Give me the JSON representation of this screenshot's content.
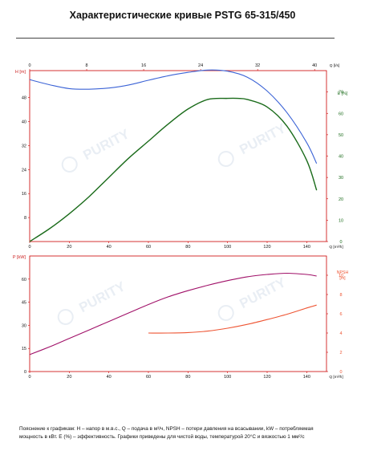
{
  "title": "Характеристические кривые PSTG 65-315/450",
  "footnote": {
    "line1": "Пояснение к графикам: H – напор в м.в.с., Q – подача в м³/ч, NPSH – потери давления на всасывании, kW – потребляемая",
    "line2": "мощность в кВт. E (%) – эффективность.  Графики приведены для чистой воды, температурой 20°C и вязкостью 1 мм²/с"
  },
  "watermark": "PURITY",
  "colors": {
    "frame": "#cc0000",
    "head": "#3b63d6",
    "efficiency": "#1a6b1a",
    "power": "#a01068",
    "npsh": "#ee5533",
    "axis_text": "#111111",
    "unit_text": "#cc2222"
  },
  "chart_data": [
    {
      "type": "line",
      "panel": "top",
      "x_unit": "Q [m³/h]",
      "top_axis_unit": "Q [l/s]",
      "top_axis_ticks": [
        "0",
        "8",
        "16",
        "24",
        "32",
        "40"
      ],
      "top_axis_values": [
        0,
        8,
        16,
        24,
        32,
        40
      ],
      "xlim": [
        0,
        150
      ],
      "x_ticks": [
        0,
        20,
        40,
        60,
        80,
        100,
        120,
        140
      ],
      "left_axis": {
        "label": "H [m]",
        "ticks": [
          8,
          16,
          24,
          32,
          40,
          48
        ],
        "lim": [
          0,
          57
        ]
      },
      "right_axis": {
        "label": "E [%]",
        "ticks": [
          0,
          10,
          20,
          30,
          40,
          50,
          60,
          70
        ],
        "lim": [
          0,
          80
        ]
      },
      "series": [
        {
          "key": "head",
          "axis": "left",
          "x": [
            0,
            10,
            20,
            30,
            40,
            50,
            60,
            70,
            80,
            90,
            100,
            110,
            120,
            130,
            140,
            145
          ],
          "y": [
            54,
            52.3,
            51,
            50.8,
            51.2,
            52.2,
            53.8,
            55.3,
            56.4,
            57.2,
            56.8,
            54.8,
            50.2,
            43,
            33,
            26
          ]
        },
        {
          "key": "efficiency",
          "axis": "right",
          "x": [
            0,
            10,
            20,
            30,
            40,
            50,
            60,
            70,
            80,
            90,
            100,
            105,
            110,
            120,
            130,
            140,
            145
          ],
          "y": [
            0,
            6,
            13,
            21,
            30,
            39,
            47,
            55,
            62,
            66.5,
            67,
            67,
            66.5,
            63,
            54,
            38,
            24
          ]
        }
      ]
    },
    {
      "type": "line",
      "panel": "bottom",
      "x_unit": "Q [m³/h]",
      "xlim": [
        0,
        150
      ],
      "x_ticks": [
        0,
        20,
        40,
        60,
        80,
        100,
        120,
        140
      ],
      "left_axis": {
        "label": "P [kW]",
        "ticks": [
          0,
          15,
          30,
          45,
          60
        ],
        "lim": [
          0,
          75
        ]
      },
      "right_axis": {
        "label": "NPSH",
        "unit": "[m]",
        "ticks": [
          0,
          2,
          4,
          6,
          8,
          10
        ],
        "lim": [
          0,
          12
        ]
      },
      "series": [
        {
          "key": "power",
          "axis": "left",
          "x": [
            0,
            10,
            20,
            30,
            40,
            50,
            60,
            70,
            80,
            90,
            100,
            110,
            120,
            130,
            140,
            145
          ],
          "y": [
            11,
            16,
            21.5,
            27,
            32.5,
            38,
            43.5,
            48.5,
            52.5,
            56,
            59,
            61.5,
            63,
            63.8,
            63,
            62
          ]
        },
        {
          "key": "npsh",
          "axis": "right",
          "x": [
            60,
            70,
            80,
            90,
            100,
            110,
            120,
            130,
            140,
            145
          ],
          "y": [
            4.0,
            4.0,
            4.05,
            4.2,
            4.5,
            4.9,
            5.4,
            5.95,
            6.6,
            6.9
          ]
        }
      ]
    }
  ]
}
